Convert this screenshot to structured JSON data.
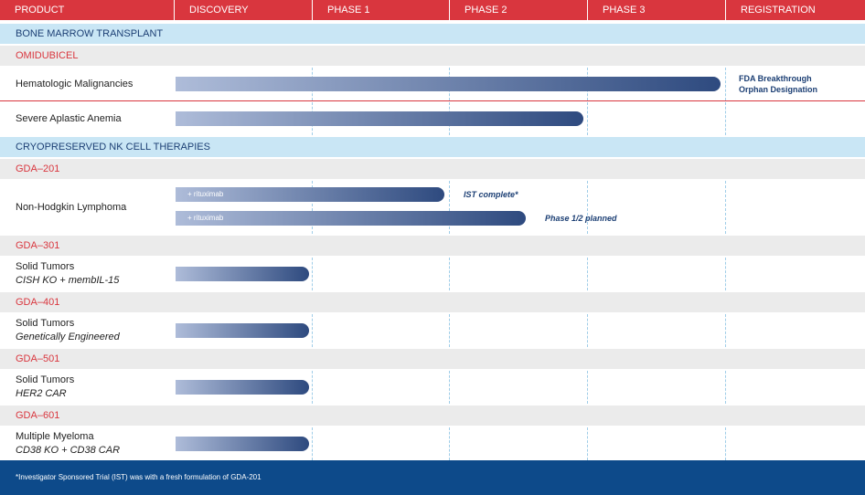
{
  "header": {
    "columns": [
      "PRODUCT",
      "DISCOVERY",
      "PHASE 1",
      "PHASE 2",
      "PHASE 3",
      "REGISTRATION"
    ]
  },
  "sections": [
    {
      "title": "BONE MARROW TRANSPLANT",
      "programs": [
        {
          "name": "OMIDUBICEL",
          "indications": [
            {
              "name": "Hematologic Malignancies",
              "note": [
                "FDA Breakthrough",
                "Orphan Designation"
              ]
            },
            {
              "name": "Severe Aplastic Anemia"
            }
          ]
        }
      ]
    },
    {
      "title": "CRYOPRESERVED NK CELL THERAPIES",
      "programs": [
        {
          "name": "GDA–201",
          "indications": [
            {
              "name": "Non-Hodgkin Lymphoma",
              "bars": [
                {
                  "label": "+ rituximab",
                  "note": "IST complete*"
                },
                {
                  "label": "+ rituximab",
                  "note": "Phase 1/2 planned"
                }
              ]
            }
          ]
        },
        {
          "name": "GDA–301",
          "indications": [
            {
              "name": "Solid Tumors",
              "detail": "CISH KO + membIL-15"
            }
          ]
        },
        {
          "name": "GDA–401",
          "indications": [
            {
              "name": "Solid Tumors",
              "detail": "Genetically Engineered"
            }
          ]
        },
        {
          "name": "GDA–501",
          "indications": [
            {
              "name": "Solid Tumors",
              "detail": "HER2 CAR"
            }
          ]
        },
        {
          "name": "GDA–601",
          "indications": [
            {
              "name": "Multiple Myeloma",
              "detail": "CD38 KO + CD38 CAR"
            }
          ]
        }
      ]
    }
  ],
  "footnote": "*Investigator Sponsored Trial (IST) was with a fresh formulation of GDA-201"
}
